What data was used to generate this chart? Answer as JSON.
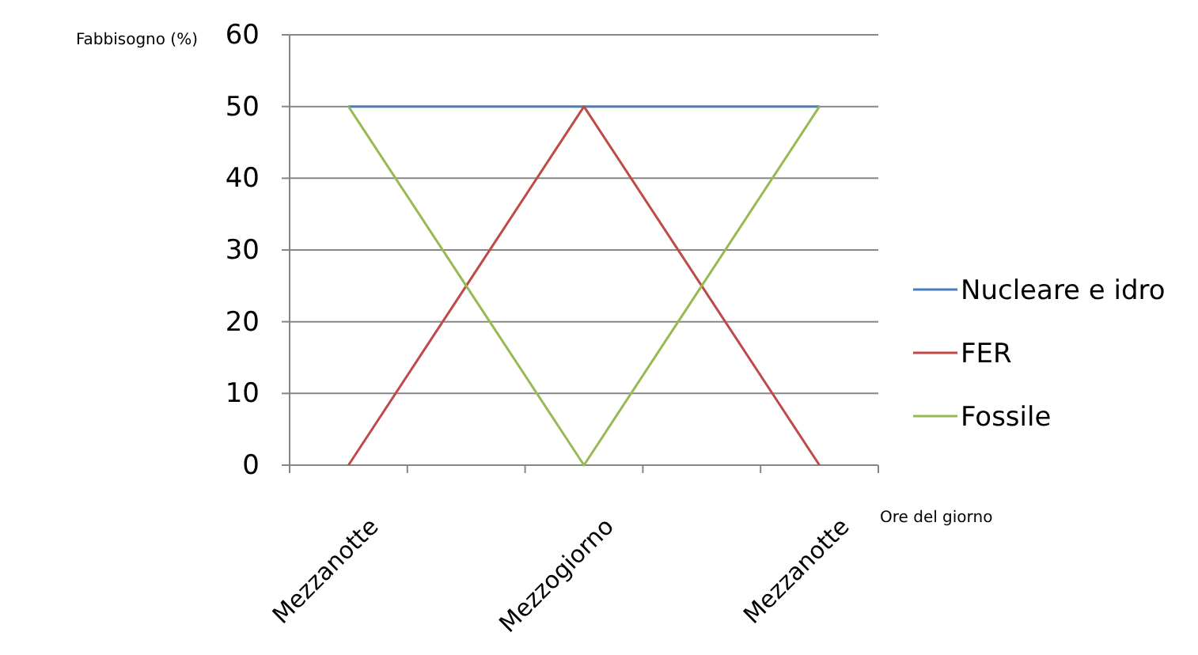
{
  "chart_data": {
    "type": "line",
    "xlabel": "Ore del giorno",
    "ylabel": "Fabbisogno (%)",
    "categories": [
      "Mezzanotte",
      null,
      "Mezzogiorno",
      null,
      "Mezzanotte"
    ],
    "series": [
      {
        "name": "Nucleare e idro",
        "color": "#4a7ebb",
        "values": [
          50,
          50,
          50,
          50,
          50
        ]
      },
      {
        "name": "FER",
        "color": "#be4b48",
        "values": [
          0,
          25,
          50,
          25,
          0
        ]
      },
      {
        "name": "Fossile",
        "color": "#98b954",
        "values": [
          50,
          25,
          0,
          25,
          50
        ]
      }
    ],
    "ylim": [
      0,
      60
    ],
    "yticks": [
      0,
      10,
      20,
      30,
      40,
      50,
      60
    ],
    "grid": "y",
    "legend": "right",
    "marker": "none",
    "line_style": "solid"
  }
}
